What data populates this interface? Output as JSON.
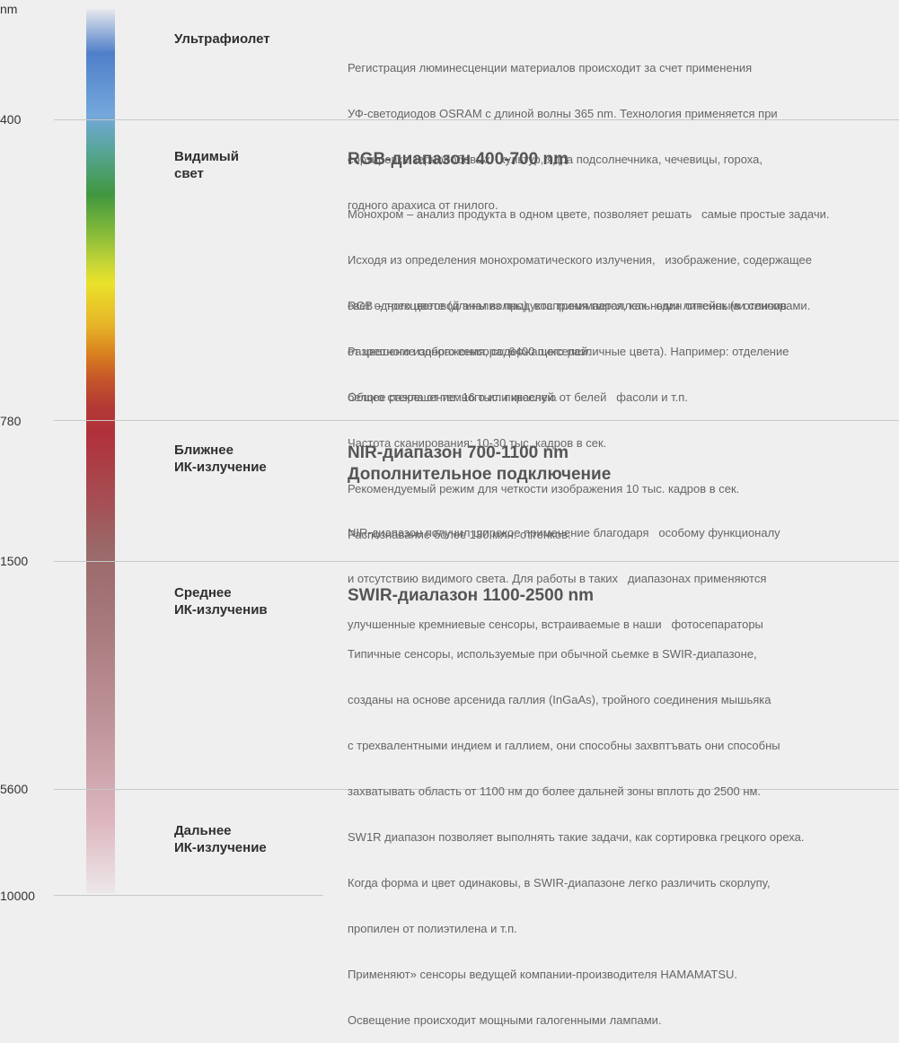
{
  "axis": {
    "unit": "nm",
    "ticks": [
      "400",
      "780",
      "1500",
      "5600",
      "10000"
    ]
  },
  "bands": {
    "uv": {
      "name_lines": [
        "Ультрафиолет"
      ]
    },
    "visible": {
      "name_lines": [
        "Видимый",
        "свет"
      ]
    },
    "nir": {
      "name_lines": [
        "Ближнее",
        "ИК-излучение"
      ]
    },
    "swir": {
      "name_lines": [
        "Среднее",
        "ИК-излученив"
      ]
    },
    "far": {
      "name_lines": [
        "Дальнее",
        "ИК-излучение"
      ]
    }
  },
  "uv_text": {
    "lines": [
      "Регистрация люминесценции материалов происходит за счет применения",
      "УФ-светодиодов OSRAM с длиной волны 365 nm. Технология применяется при",
      "сортировке зернобобовых   культур, ядра подсолнечника, чечевицы, гороха,",
      "годного арахиса от гнилого."
    ]
  },
  "rgb": {
    "heading": "RGB-диапазон 400-700 nm",
    "mono_lines": [
      "Монохром – анализ продукта в одном цвете, позволяет решать   самые простые задачи.",
      "Исходя из определения монохроматического излучения,   изображение, содержащее",
      "свет одного цвете (длины волны), воспринимается, как   один оттенок (в отличив",
      "от цветного изображения, содержащего различные цвета). Например: отделение",
      "белого стекла от темного или красную от белей   фасоли и т.п."
    ],
    "rgb_lines": [
      "RGB – трехцветовой анализ продукта тремя параллельными линейными сенсорами.",
      "Разрешение одного сенсора: 6400 пикселей.",
      "Общее разрешение: 16 тыс. пикселей.",
      "Частота сканирования: 10-30 тыс. кадров в сек.",
      "Рекомендуемый режим для четкости изображения 10 тыс. кадров в сек.",
      "Распознавание более 130 млн. оттенков."
    ]
  },
  "nir": {
    "heading_lines": [
      "NIR-диапазон 700-1100 nm",
      "Дополнительное подключение"
    ],
    "lines": [
      "NIR-диапазон получил широкое применение благодаря   особому функционалу",
      "и отсутствию видимого света. Для работы в таких   диапазонах применяются",
      "улучшенные кремниевые сенсоры, встраиваемые в наши   фотосепараторы"
    ]
  },
  "swir": {
    "heading": "SWIR-диалазон 1100-2500 nm",
    "lines": [
      "Типичные сенсоры, используемые при обычной сьемке в SWIR-диапазоне,",
      "созданы на основе арсенида галлия (InGaAs), тройного соединения мышьяка",
      "с трехвалентными индием и галлием, они способны захвптъвать они способны",
      "захватывать область от 1100 нм до более дальней зоны вплоть до 2500 нм.",
      "SW1R диапазон позволяет выполнять такие задачи, как сортировка грецкого ореха.",
      "Когда форма и цвет одинаковы, в SWIR-диапазоне легко различить скорлупу,",
      "пропилен от полиэтилена и т.п.",
      "Применяют» сенсоры ведущей компании-производителя HAMAMATSU.",
      "Освещение происходит мощными галогенными лампами."
    ]
  }
}
